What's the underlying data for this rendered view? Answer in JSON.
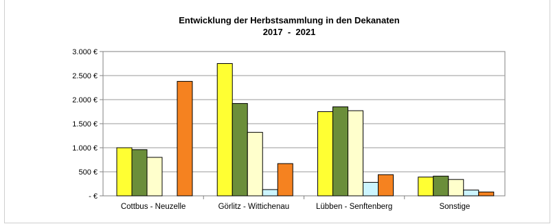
{
  "chart_data": {
    "type": "bar",
    "title": "Entwicklung der Herbstsammlung in den Dekanaten",
    "subtitle": "2017  -  2021",
    "categories": [
      "Cottbus - Neuzelle",
      "Görlitz - Wittichenau",
      "Lübben - Senftenberg",
      "Sonstige"
    ],
    "series": [
      {
        "color": "#ffff33",
        "values": [
          1000,
          2750,
          1750,
          390
        ]
      },
      {
        "color": "#6b8e3a",
        "values": [
          960,
          1920,
          1850,
          410
        ]
      },
      {
        "color": "#ffffcc",
        "values": [
          800,
          1320,
          1770,
          340
        ]
      },
      {
        "color": "#ccf5ff",
        "values": [
          0,
          130,
          280,
          120
        ]
      },
      {
        "color": "#f58220",
        "values": [
          2380,
          670,
          440,
          80
        ]
      }
    ],
    "ylim": [
      0,
      3000
    ],
    "yticks": [
      0,
      500,
      1000,
      1500,
      2000,
      2500,
      3000
    ],
    "ytick_labels": [
      "-  €",
      "500 €",
      "1.000 €",
      "1.500 €",
      "2.000 €",
      "2.500 €",
      "3.000 €"
    ],
    "grid": true,
    "legend": "none"
  }
}
